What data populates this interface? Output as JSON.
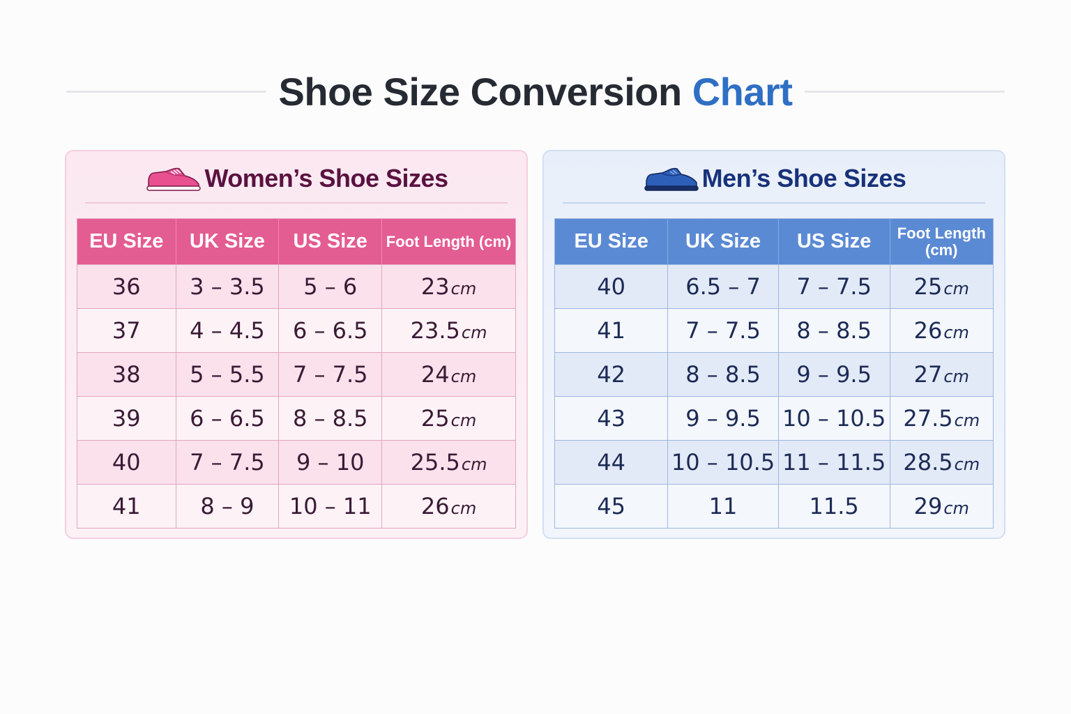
{
  "title": {
    "main": "Shoe Size Conversion",
    "accent": "Chart"
  },
  "colors": {
    "women_accent": "#e35c92",
    "men_accent": "#5b8ad4",
    "title_accent": "#2f6fc4"
  },
  "women": {
    "title": "Women’s Shoe Sizes",
    "icon": "pink-sneaker-icon",
    "headers": [
      "EU Size",
      "UK Size",
      "US Size",
      "Foot Length (cm)"
    ],
    "rows": [
      {
        "eu": "36",
        "uk": "3 – 3.5",
        "us": "5 – 6",
        "len": "23",
        "unit": "cm"
      },
      {
        "eu": "37",
        "uk": "4 – 4.5",
        "us": "6 – 6.5",
        "len": "23.5",
        "unit": "cm"
      },
      {
        "eu": "38",
        "uk": "5 – 5.5",
        "us": "7 – 7.5",
        "len": "24",
        "unit": "cm"
      },
      {
        "eu": "39",
        "uk": "6 – 6.5",
        "us": "8 – 8.5",
        "len": "25",
        "unit": "cm"
      },
      {
        "eu": "40",
        "uk": "7 – 7.5",
        "us": "9 – 10",
        "len": "25.5",
        "unit": "cm"
      },
      {
        "eu": "41",
        "uk": "8 – 9",
        "us": "10 – 11",
        "len": "26",
        "unit": "cm"
      }
    ]
  },
  "men": {
    "title": "Men’s Shoe Sizes",
    "icon": "blue-dress-shoe-icon",
    "headers": [
      "EU Size",
      "UK Size",
      "US Size",
      "Foot Length (cm)"
    ],
    "rows": [
      {
        "eu": "40",
        "uk": "6.5 – 7",
        "us": "7 – 7.5",
        "len": "25",
        "unit": "cm"
      },
      {
        "eu": "41",
        "uk": "7 – 7.5",
        "us": "8 – 8.5",
        "len": "26",
        "unit": "cm"
      },
      {
        "eu": "42",
        "uk": "8 – 8.5",
        "us": "9 – 9.5",
        "len": "27",
        "unit": "cm"
      },
      {
        "eu": "43",
        "uk": "9 – 9.5",
        "us": "10 – 10.5",
        "len": "27.5",
        "unit": "cm"
      },
      {
        "eu": "44",
        "uk": "10 – 10.5",
        "us": "11 – 11.5",
        "len": "28.5",
        "unit": "cm"
      },
      {
        "eu": "45",
        "uk": "11",
        "us": "11.5",
        "len": "29",
        "unit": "cm"
      }
    ]
  }
}
